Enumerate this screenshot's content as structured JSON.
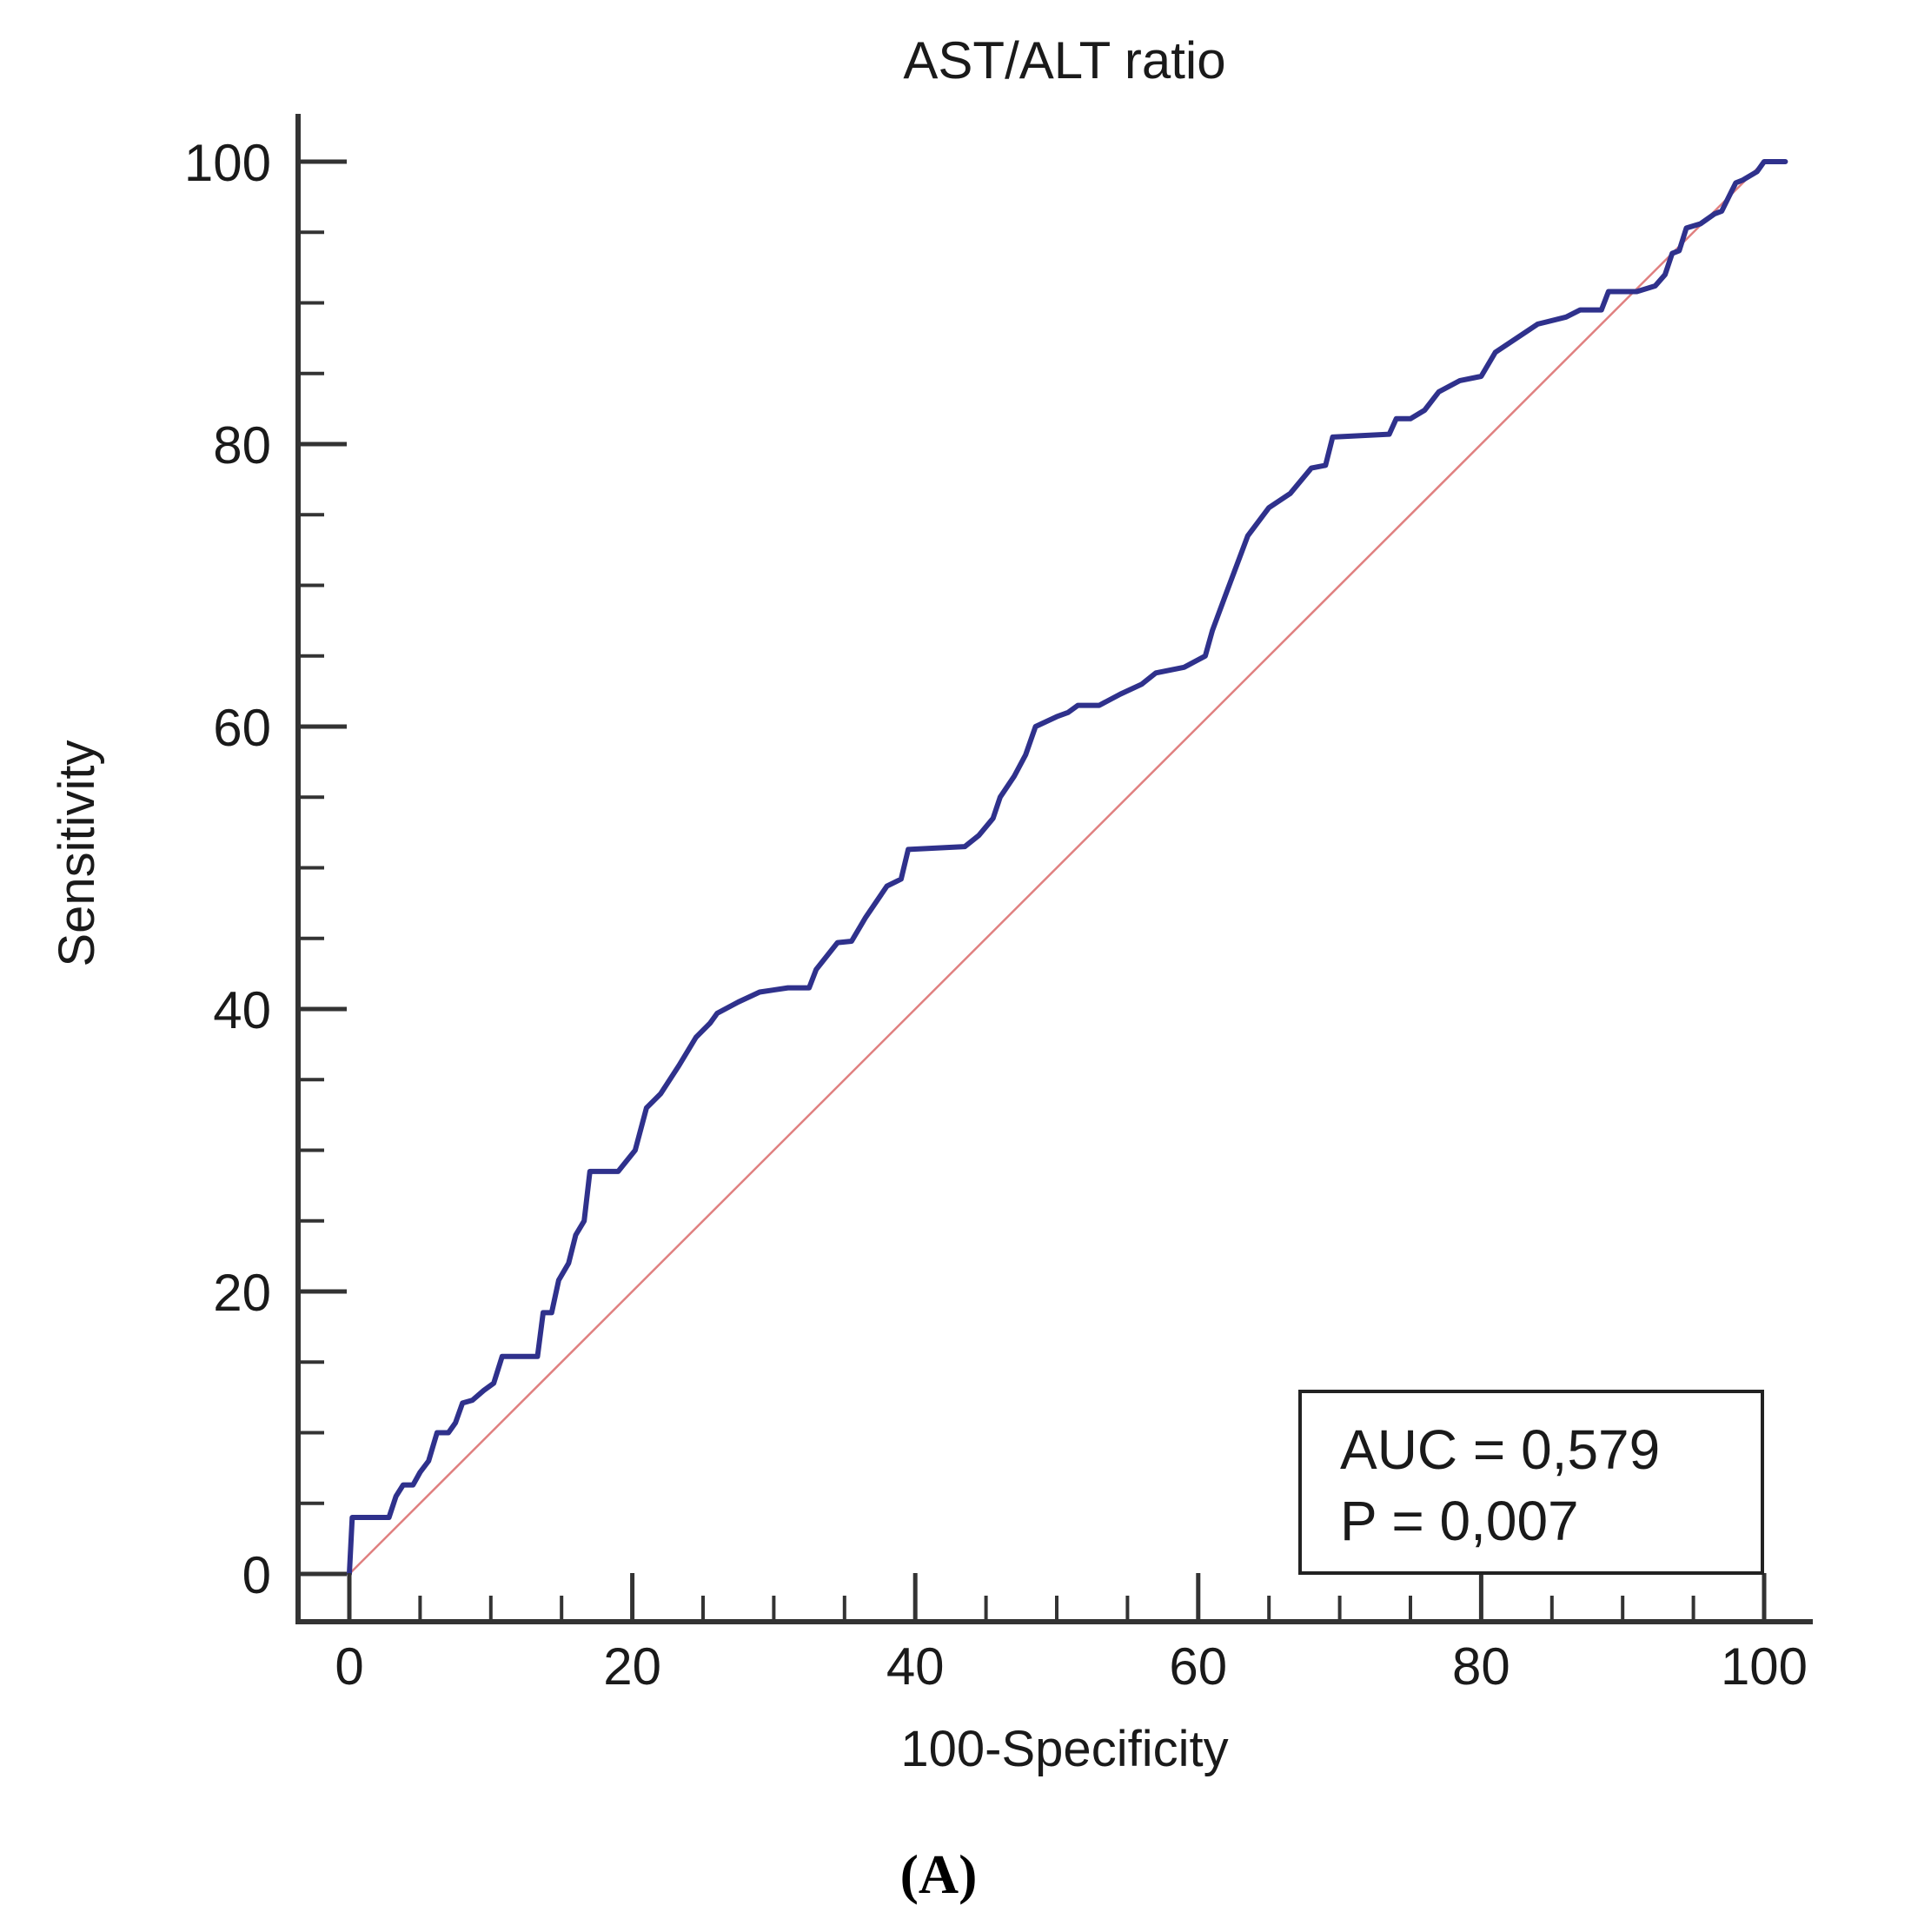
{
  "chart_data": {
    "type": "line",
    "title": "AST/ALT ratio",
    "xlabel": "100-Specificity",
    "ylabel": "Sensitivity",
    "xlim": [
      0,
      100
    ],
    "ylim": [
      0,
      100
    ],
    "x_ticks": [
      0,
      20,
      40,
      60,
      80,
      100
    ],
    "y_ticks": [
      0,
      20,
      40,
      60,
      80,
      100
    ],
    "series": [
      {
        "name": "ROC curve",
        "color": "#2f318c",
        "points": [
          [
            0,
            0
          ],
          [
            0.2,
            4
          ],
          [
            2.8,
            4
          ],
          [
            3.3,
            5.5
          ],
          [
            3.8,
            6.3
          ],
          [
            4.5,
            6.3
          ],
          [
            5,
            7.2
          ],
          [
            5.6,
            8
          ],
          [
            6.2,
            10
          ],
          [
            7,
            10
          ],
          [
            7.5,
            10.7
          ],
          [
            8,
            12.1
          ],
          [
            8.7,
            12.3
          ],
          [
            9.5,
            13
          ],
          [
            10.2,
            13.5
          ],
          [
            10.8,
            15.4
          ],
          [
            12.5,
            15.4
          ],
          [
            13.3,
            15.4
          ],
          [
            13.7,
            18.5
          ],
          [
            14.3,
            18.5
          ],
          [
            14.8,
            20.8
          ],
          [
            15.5,
            22
          ],
          [
            16,
            24
          ],
          [
            16.6,
            25
          ],
          [
            17,
            28.5
          ],
          [
            19,
            28.5
          ],
          [
            20.2,
            30
          ],
          [
            21,
            33
          ],
          [
            22,
            34
          ],
          [
            23.3,
            36
          ],
          [
            24.5,
            38
          ],
          [
            25.5,
            39
          ],
          [
            26,
            39.7
          ],
          [
            27.5,
            40.5
          ],
          [
            29,
            41.2
          ],
          [
            31,
            41.5
          ],
          [
            32.5,
            41.5
          ],
          [
            33,
            42.8
          ],
          [
            34.5,
            44.7
          ],
          [
            35.5,
            44.8
          ],
          [
            36.5,
            46.5
          ],
          [
            38,
            48.7
          ],
          [
            39,
            49.2
          ],
          [
            39.5,
            51.3
          ],
          [
            43.5,
            51.5
          ],
          [
            44.5,
            52.3
          ],
          [
            45.5,
            53.5
          ],
          [
            46,
            55
          ],
          [
            47,
            56.5
          ],
          [
            47.8,
            58
          ],
          [
            48.5,
            60
          ],
          [
            50,
            60.7
          ],
          [
            50.8,
            61
          ],
          [
            51.5,
            61.5
          ],
          [
            53,
            61.5
          ],
          [
            54.5,
            62.3
          ],
          [
            56,
            63
          ],
          [
            57,
            63.8
          ],
          [
            59,
            64.2
          ],
          [
            60.5,
            65
          ],
          [
            61,
            66.8
          ],
          [
            62,
            69.5
          ],
          [
            63.5,
            73.5
          ],
          [
            65,
            75.5
          ],
          [
            66.5,
            76.5
          ],
          [
            68,
            78.3
          ],
          [
            69,
            78.5
          ],
          [
            69.5,
            80.5
          ],
          [
            73.5,
            80.7
          ],
          [
            74,
            81.8
          ],
          [
            75,
            81.8
          ],
          [
            76,
            82.4
          ],
          [
            77,
            83.7
          ],
          [
            78.5,
            84.5
          ],
          [
            80,
            84.8
          ],
          [
            81,
            86.5
          ],
          [
            82.5,
            87.5
          ],
          [
            84,
            88.5
          ],
          [
            86,
            89
          ],
          [
            87,
            89.5
          ],
          [
            88.5,
            89.5
          ],
          [
            89,
            90.8
          ],
          [
            91,
            90.8
          ],
          [
            92.3,
            91.2
          ],
          [
            93,
            92
          ],
          [
            93.5,
            93.5
          ],
          [
            94,
            93.7
          ],
          [
            94.5,
            95.3
          ],
          [
            95.5,
            95.6
          ],
          [
            96.5,
            96.3
          ],
          [
            97,
            96.5
          ],
          [
            97.5,
            97.5
          ],
          [
            98,
            98.5
          ],
          [
            98.5,
            98.7
          ],
          [
            99.5,
            99.3
          ],
          [
            100,
            100
          ],
          [
            101,
            100
          ],
          [
            101.5,
            100
          ]
        ]
      },
      {
        "name": "Reference line",
        "color": "#e08080",
        "points": [
          [
            0,
            0
          ],
          [
            100,
            100
          ]
        ]
      }
    ],
    "annotation": {
      "auc_text": "AUC = 0,579",
      "p_text": "P = 0,007",
      "placement": "bottom-right"
    },
    "panel_label": "(A)"
  }
}
